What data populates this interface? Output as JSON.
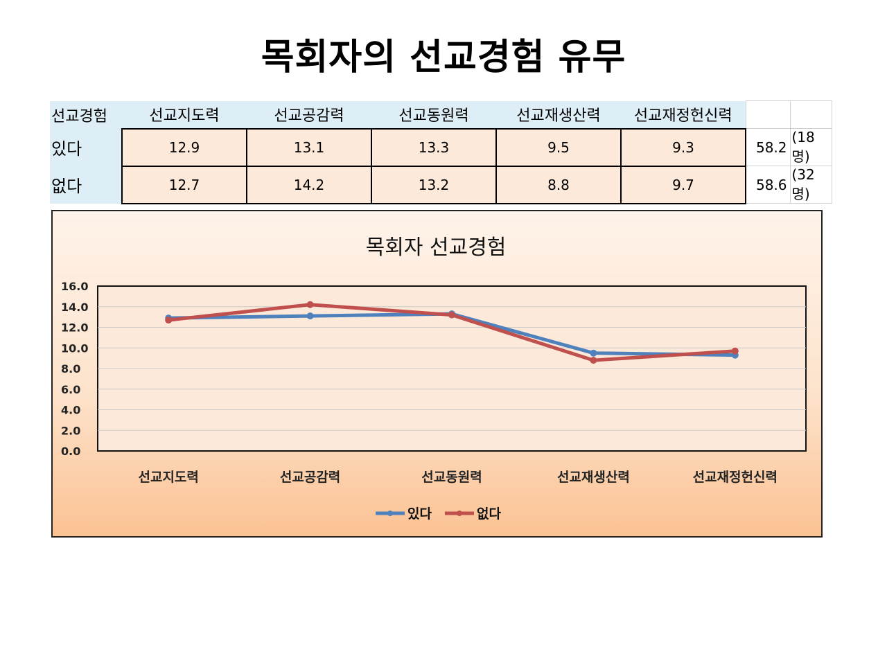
{
  "title": "목회자의 선교경험 유무",
  "table": {
    "corner": "선교경험",
    "headers": [
      "선교지도력",
      "선교공감력",
      "선교동원력",
      "선교재생산력",
      "선교재정헌신력"
    ],
    "rows": [
      {
        "label": "있다",
        "values": [
          "12.9",
          "13.1",
          "13.3",
          "9.5",
          "9.3"
        ],
        "total": "58.2",
        "count": "(18명)"
      },
      {
        "label": "없다",
        "values": [
          "12.7",
          "14.2",
          "13.2",
          "8.8",
          "9.7"
        ],
        "total": "58.6",
        "count": "(32명)"
      }
    ]
  },
  "chart_data": {
    "type": "line",
    "title": "목회자 선교경험",
    "categories": [
      "선교지도력",
      "선교공감력",
      "선교동원력",
      "선교재생산력",
      "선교재정헌신력"
    ],
    "series": [
      {
        "name": "있다",
        "values": [
          12.9,
          13.1,
          13.3,
          9.5,
          9.3
        ],
        "color": "#4f81bd"
      },
      {
        "name": "없다",
        "values": [
          12.7,
          14.2,
          13.2,
          8.8,
          9.7
        ],
        "color": "#c0504d"
      }
    ],
    "ylim": [
      0,
      16
    ],
    "yticks": [
      "0.0",
      "2.0",
      "4.0",
      "6.0",
      "8.0",
      "10.0",
      "12.0",
      "14.0",
      "16.0"
    ],
    "grid": true,
    "legend": "bottom"
  }
}
